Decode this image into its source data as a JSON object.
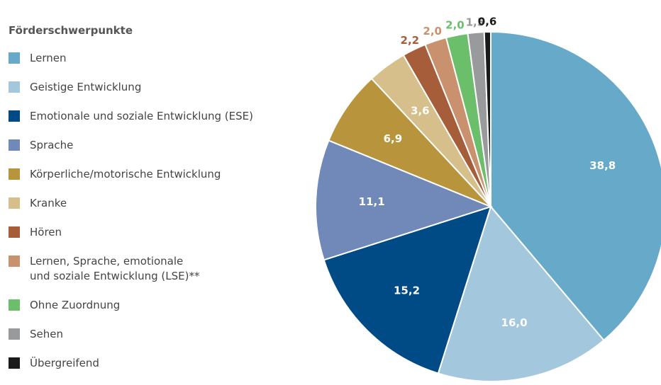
{
  "chart_data": {
    "type": "pie",
    "legend_title": "Förderschwerpunkte",
    "legend": "left",
    "series": [
      {
        "name": "Lernen",
        "color": "#67a9c9",
        "values": [
          38.8
        ],
        "value_labels": [
          "38,8"
        ]
      },
      {
        "name": "Geistige Entwicklung",
        "color": "#a3c8dd",
        "values": [
          16.0
        ],
        "value_labels": [
          "16,0"
        ]
      },
      {
        "name": "Emotionale und soziale Entwicklung (ESE)",
        "color": "#004a86",
        "values": [
          15.2
        ],
        "value_labels": [
          "15,2"
        ]
      },
      {
        "name": "Sprache",
        "color": "#7089b8",
        "values": [
          11.1
        ],
        "value_labels": [
          "11,1"
        ]
      },
      {
        "name": "Körperliche/motorische Entwicklung",
        "color": "#b8953c",
        "values": [
          6.9
        ],
        "value_labels": [
          "6,9"
        ]
      },
      {
        "name": "Kranke",
        "color": "#d6bf8a",
        "values": [
          3.6
        ],
        "value_labels": [
          "3,6"
        ]
      },
      {
        "name": "Hören",
        "color": "#a65e3a",
        "values": [
          2.2
        ],
        "value_labels": [
          "2,2"
        ]
      },
      {
        "name": "Lernen, Sprache, emotionale\nund soziale Entwicklung (LSE)**",
        "color": "#c9916e",
        "values": [
          2.0
        ],
        "value_labels": [
          "2,0"
        ]
      },
      {
        "name": "Ohne Zuordnung",
        "color": "#6bbf6b",
        "values": [
          2.0
        ],
        "value_labels": [
          "2,0"
        ]
      },
      {
        "name": "Sehen",
        "color": "#999a9c",
        "values": [
          1.5
        ],
        "value_labels": [
          "1,5"
        ]
      },
      {
        "name": "Übergreifend",
        "color": "#1a1a1a",
        "values": [
          0.6
        ],
        "value_labels": [
          "0,6"
        ]
      }
    ]
  }
}
